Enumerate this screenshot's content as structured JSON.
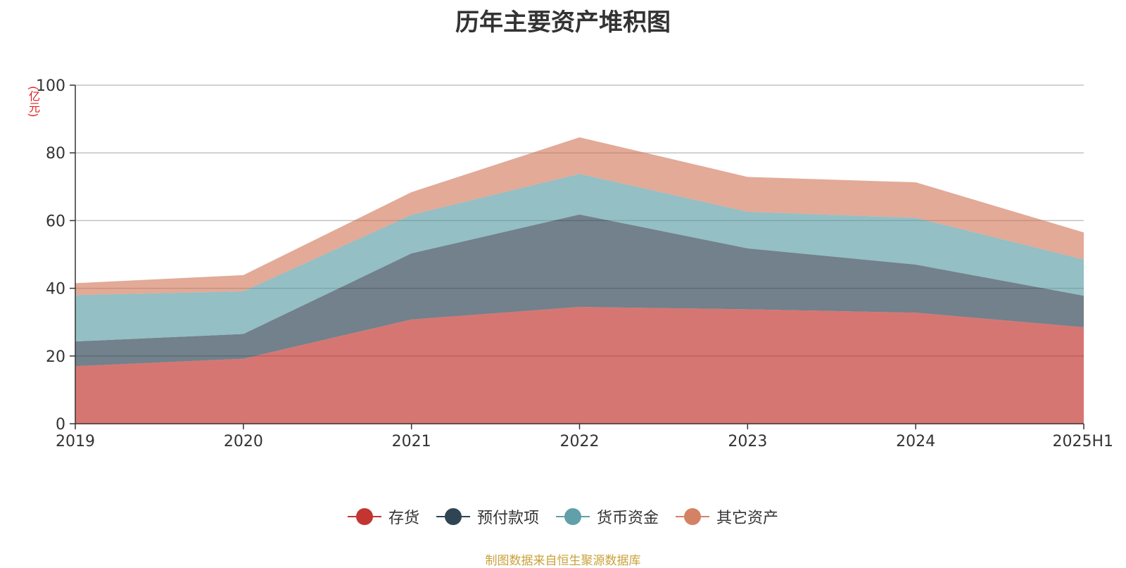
{
  "chart_data": {
    "type": "area",
    "title": "历年主要资产堆积图",
    "ylabel": "(亿元)",
    "xlabel": "",
    "categories": [
      "2019",
      "2020",
      "2021",
      "2022",
      "2023",
      "2024",
      "2025H1"
    ],
    "ylim": [
      0,
      100
    ],
    "yticks": [
      0,
      20,
      40,
      60,
      80,
      100
    ],
    "stacked": true,
    "grid": true,
    "legend_position": "bottom",
    "series": [
      {
        "name": "存货",
        "color": "#c23531",
        "values": [
          17.0,
          19.2,
          30.8,
          34.5,
          33.8,
          32.8,
          28.5
        ]
      },
      {
        "name": "预付款项",
        "color": "#2f4554",
        "values": [
          7.3,
          7.3,
          19.5,
          27.3,
          18.0,
          14.2,
          9.3
        ]
      },
      {
        "name": "货币资金",
        "color": "#61a0a8",
        "values": [
          13.7,
          12.6,
          11.4,
          12.0,
          10.8,
          13.8,
          10.7
        ]
      },
      {
        "name": "其它资产",
        "color": "#d48265",
        "values": [
          3.5,
          4.8,
          6.7,
          10.8,
          10.3,
          10.5,
          8.0
        ]
      }
    ]
  },
  "source_text": "制图数据来自恒生聚源数据库"
}
